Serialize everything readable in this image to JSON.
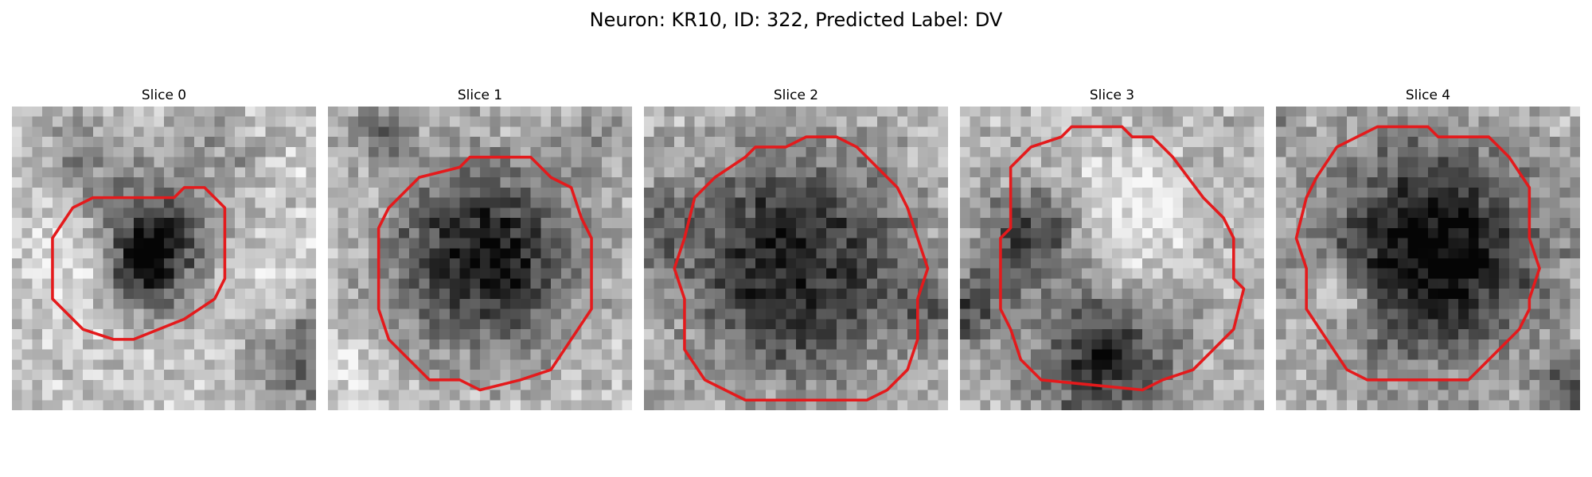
{
  "figure": {
    "title": "Neuron: KR10, ID: 322, Predicted Label: DV",
    "contour_color": "#e41a1c"
  },
  "panels": [
    {
      "title": "Slice 0",
      "content": "grayscale-microscopy-patch-with-contour"
    },
    {
      "title": "Slice 1",
      "content": "grayscale-microscopy-patch-with-contour"
    },
    {
      "title": "Slice 2",
      "content": "grayscale-microscopy-patch-with-contour"
    },
    {
      "title": "Slice 3",
      "content": "grayscale-microscopy-patch-with-contour"
    },
    {
      "title": "Slice 4",
      "content": "grayscale-microscopy-patch-with-contour"
    }
  ]
}
